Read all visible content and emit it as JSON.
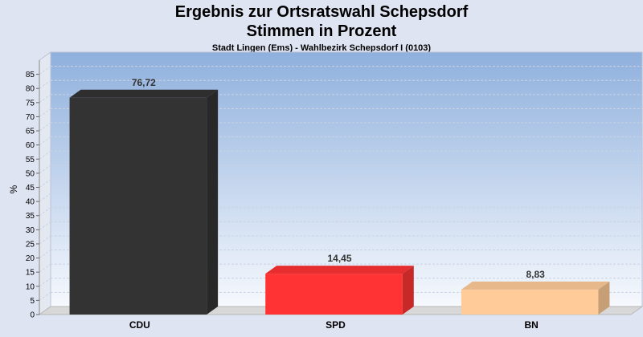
{
  "chart_data": {
    "type": "bar",
    "title": "Ergebnis zur Ortsratswahl Schepsdorf",
    "title2": "Stimmen in Prozent",
    "subtitle": "Stadt Lingen (Ems) - Wahlbezirk Schepsdorf I (0103)",
    "ylabel": "%",
    "xlabel": "",
    "ylim": [
      0,
      90
    ],
    "yticks": [
      0,
      5,
      10,
      15,
      20,
      25,
      30,
      35,
      40,
      45,
      50,
      55,
      60,
      65,
      70,
      75,
      80,
      85
    ],
    "grid": true,
    "categories": [
      "CDU",
      "SPD",
      "BN"
    ],
    "values": [
      76.72,
      14.45,
      8.83
    ],
    "value_labels": [
      "76,72",
      "14,45",
      "8,83"
    ],
    "colors": [
      "#333333",
      "#ff3333",
      "#ffcc99"
    ]
  }
}
